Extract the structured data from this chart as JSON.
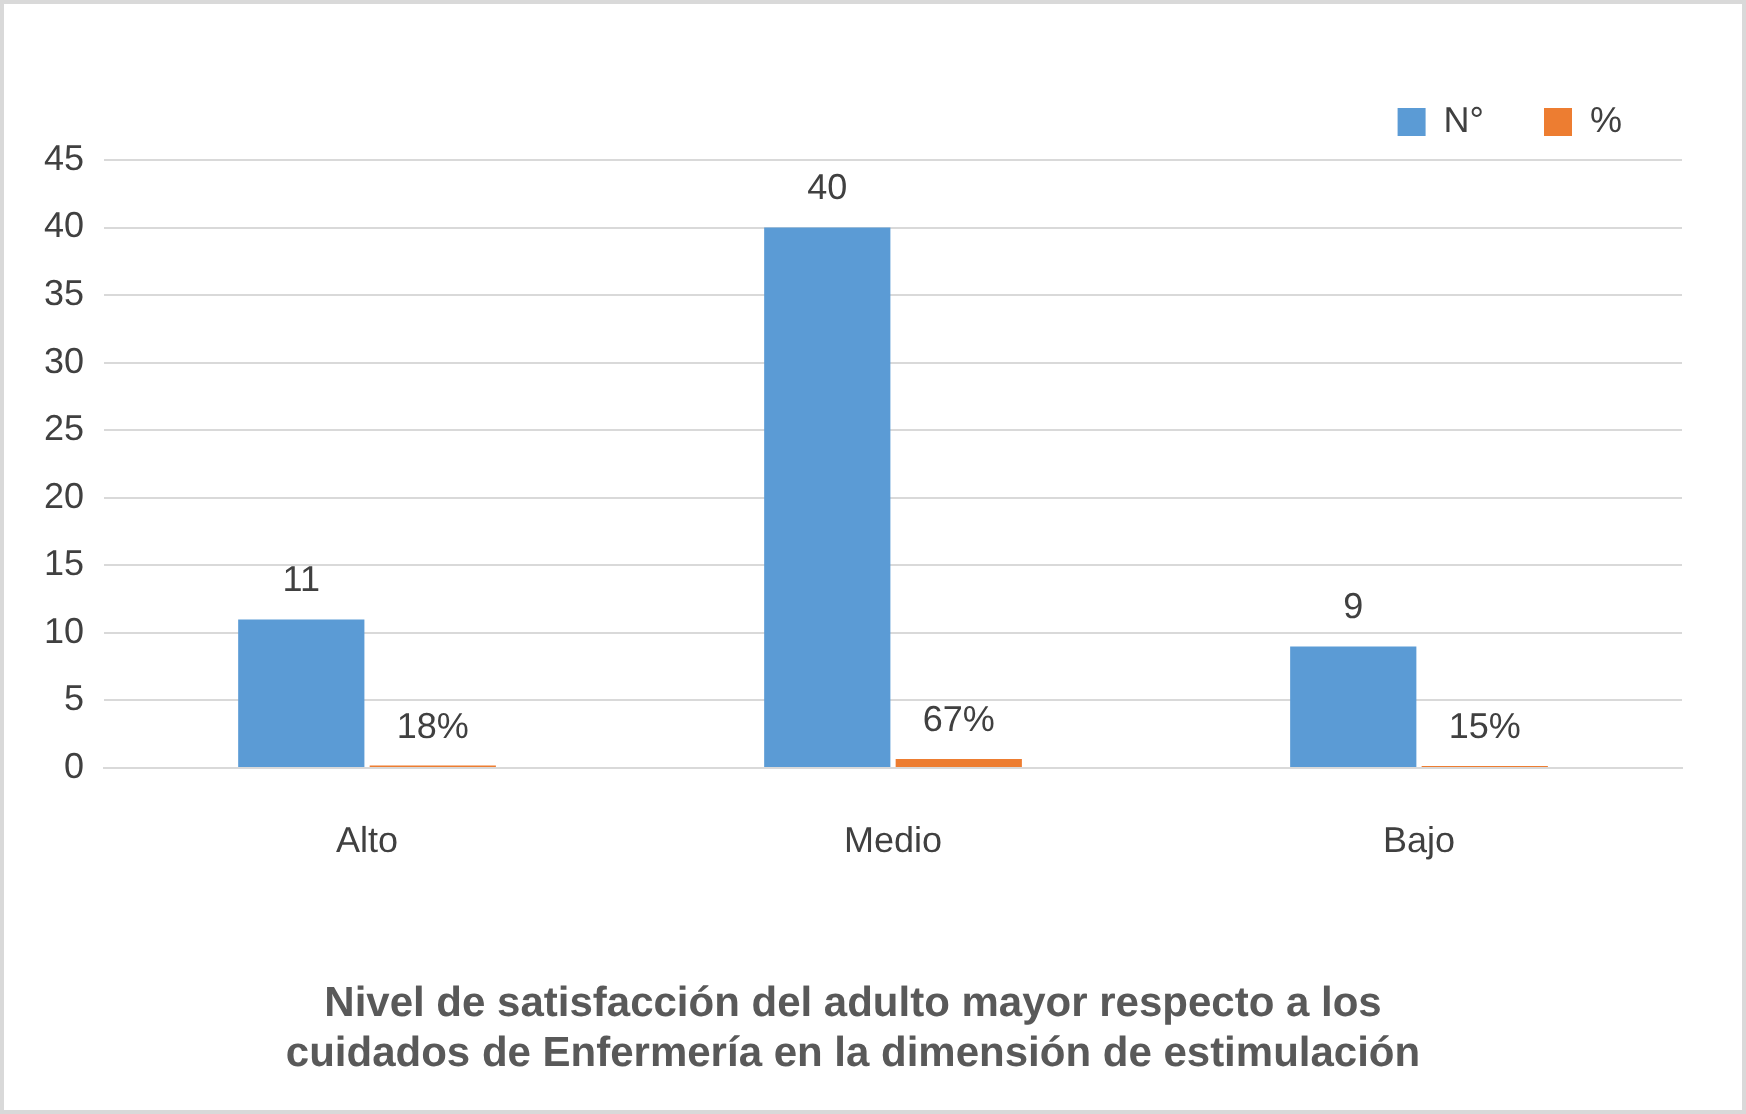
{
  "chart_data": {
    "type": "bar",
    "title": "Nivel de satisfacción del adulto mayor respecto a los cuidados de Enfermería en la dimensión de estimulación",
    "categories": [
      "Alto",
      "Medio",
      "Bajo"
    ],
    "series": [
      {
        "name": "N°",
        "color": "#5b9bd5",
        "values": [
          11,
          40,
          9
        ],
        "value_labels": [
          "11",
          "40",
          "9"
        ]
      },
      {
        "name": "%",
        "color": "#ed7d31",
        "values": [
          0.18,
          0.67,
          0.15
        ],
        "value_labels": [
          "18%",
          "67%",
          "15%"
        ]
      }
    ],
    "ylim": [
      0,
      45
    ],
    "yticks": [
      0,
      5,
      10,
      15,
      20,
      25,
      30,
      35,
      40,
      45
    ],
    "grid": "y",
    "legend": "top right"
  }
}
